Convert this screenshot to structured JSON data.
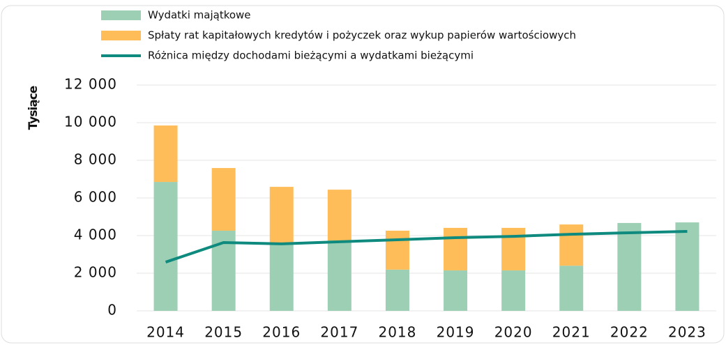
{
  "chart_data": {
    "type": "bar",
    "y_label": "Tysiące",
    "categories": [
      "2014",
      "2015",
      "2016",
      "2017",
      "2018",
      "2019",
      "2020",
      "2021",
      "2022",
      "2023"
    ],
    "series": [
      {
        "name": "Wydatki majątkowe",
        "color": "#9dcfb4",
        "stack": "bottom-second",
        "values": [
          6850,
          4260,
          3590,
          3740,
          2190,
          2150,
          2150,
          2400,
          4670,
          4700
        ]
      },
      {
        "name": "Spłaty rat kapitałowych kredytów i pożyczek oraz wykup papierów wartościowych",
        "color": "#ffbd59",
        "stack": "bottom-first",
        "values": [
          3000,
          3330,
          3000,
          2700,
          2070,
          2260,
          2260,
          2190,
          0,
          0
        ]
      },
      {
        "name": "Różnica między dochodami bieżącymi a  wydatkami bieżącymi",
        "color": "#0e8a7e",
        "type": "line",
        "values": [
          2590,
          3630,
          3560,
          3670,
          3780,
          3890,
          3960,
          4070,
          4150,
          4220
        ]
      }
    ],
    "ylim": [
      0,
      12000
    ],
    "yticks": [
      0,
      {
        "value": 2000,
        "label": "2 000"
      },
      {
        "value": 4000,
        "label": "4 000"
      },
      {
        "value": 6000,
        "label": "6 000"
      },
      {
        "value": 8000,
        "label": "8 000"
      },
      {
        "value": 10000,
        "label": "10 000"
      },
      {
        "value": 12000,
        "label": "12 000"
      }
    ],
    "grid": true
  }
}
